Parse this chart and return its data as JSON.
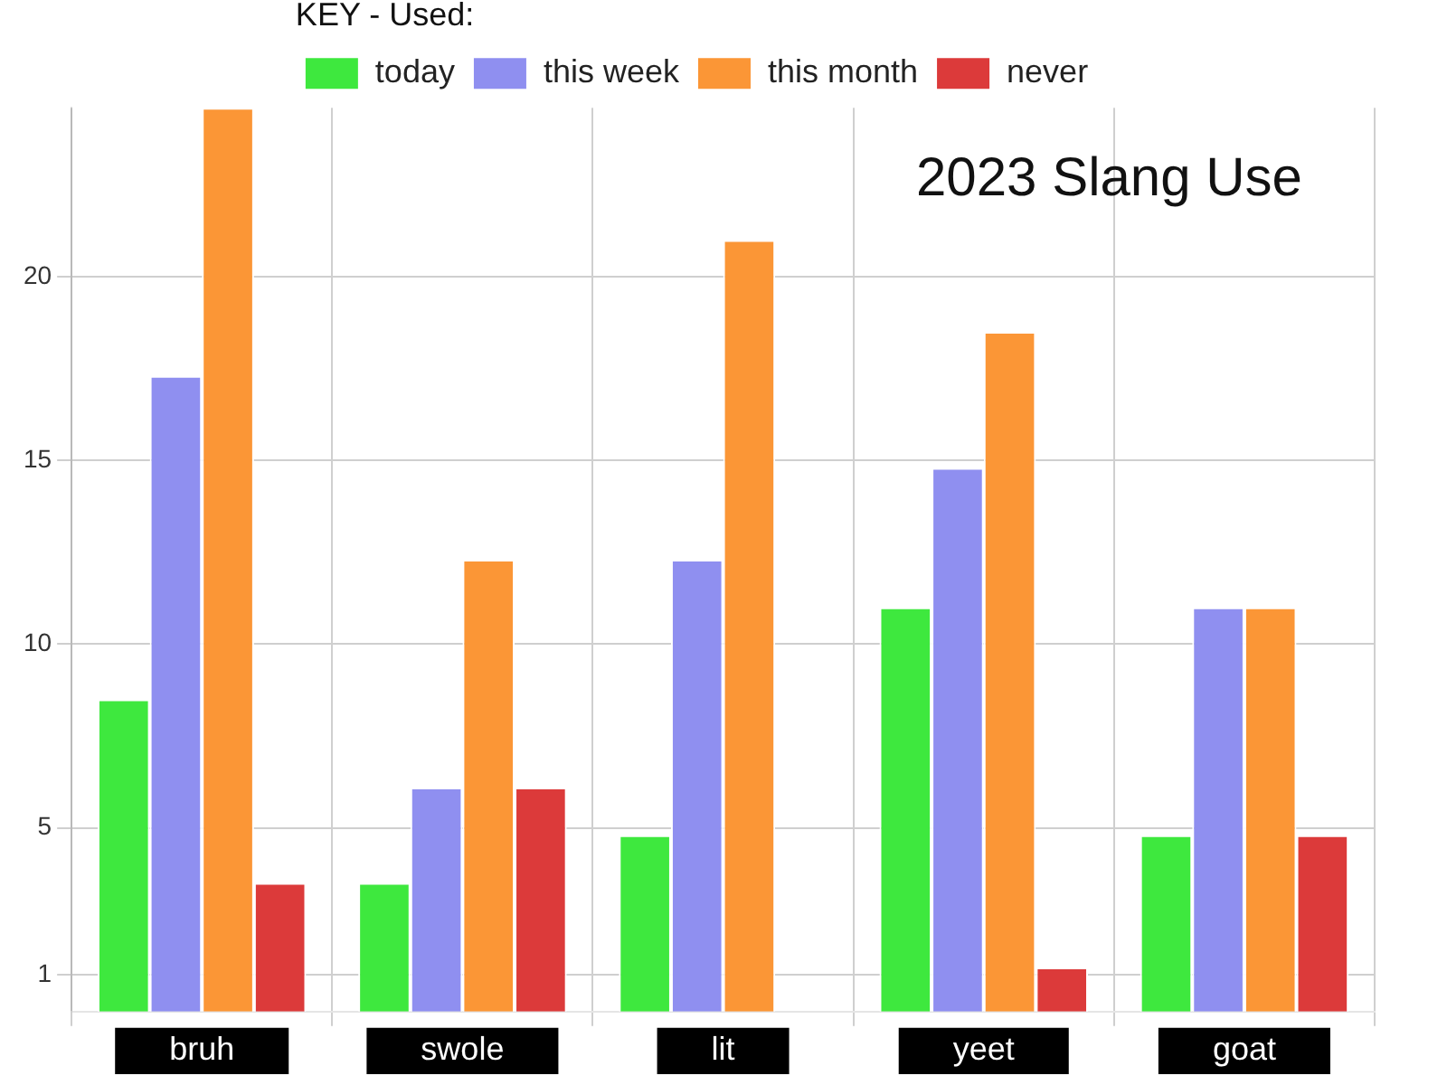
{
  "chart_data": {
    "type": "bar",
    "title": "2023 Slang Use",
    "legend_title": "KEY - Used:",
    "categories": [
      "bruh",
      "swole",
      "lit",
      "yeet",
      "goat"
    ],
    "series": [
      {
        "name": "today",
        "color": "#3ee83e",
        "values": [
          8.5,
          3.5,
          4.8,
          11.0,
          4.8
        ]
      },
      {
        "name": "this week",
        "color": "#8f8ff0",
        "values": [
          17.3,
          6.1,
          12.3,
          14.8,
          11.0
        ]
      },
      {
        "name": "this month",
        "color": "#fb9636",
        "values": [
          24.6,
          12.3,
          21.0,
          18.5,
          11.0
        ]
      },
      {
        "name": "never",
        "color": "#dc3a3a",
        "values": [
          3.5,
          6.1,
          0,
          1.2,
          4.8
        ]
      }
    ],
    "ylim": [
      0,
      24.6
    ],
    "yticks": [
      1,
      5,
      10,
      15,
      20
    ],
    "grid": true,
    "legend": "top"
  }
}
